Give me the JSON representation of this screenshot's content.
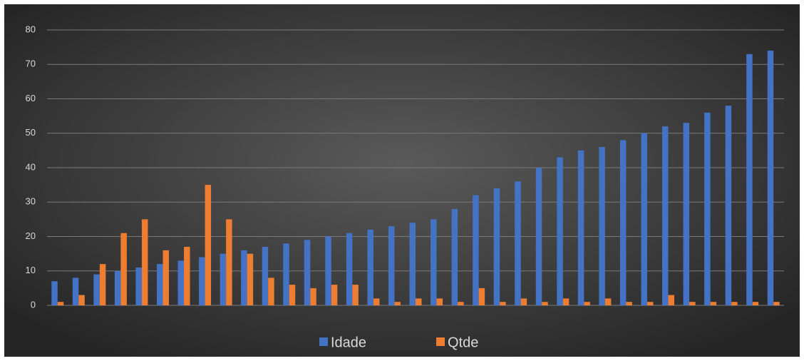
{
  "chart_data": {
    "type": "bar",
    "categories": [
      null,
      null,
      null,
      null,
      null,
      null,
      null,
      null,
      null,
      null,
      null,
      null,
      null,
      null,
      null,
      null,
      null,
      null,
      null,
      null,
      null,
      null,
      null,
      null,
      null,
      null,
      null,
      null,
      null,
      null,
      null,
      null,
      null,
      null,
      null
    ],
    "series": [
      {
        "name": "Idade",
        "color": "#4472c4",
        "values": [
          7,
          8,
          9,
          10,
          11,
          12,
          13,
          14,
          15,
          16,
          17,
          18,
          19,
          20,
          21,
          22,
          23,
          24,
          25,
          28,
          32,
          34,
          36,
          40,
          43,
          45,
          46,
          48,
          50,
          52,
          53,
          56,
          58,
          73,
          74
        ]
      },
      {
        "name": "Qtde",
        "color": "#ed7d31",
        "values": [
          1,
          3,
          12,
          21,
          25,
          16,
          17,
          35,
          25,
          15,
          8,
          6,
          5,
          6,
          6,
          2,
          1,
          2,
          2,
          1,
          5,
          1,
          2,
          1,
          2,
          1,
          2,
          1,
          1,
          3,
          1,
          1,
          1,
          1,
          1
        ]
      }
    ],
    "ylim": [
      0,
      80
    ],
    "yticks": [
      0,
      10,
      20,
      30,
      40,
      50,
      60,
      70,
      80
    ],
    "grid": true,
    "legend": "bottom"
  }
}
